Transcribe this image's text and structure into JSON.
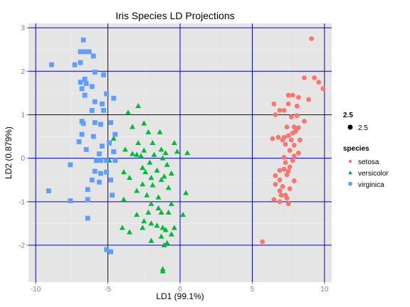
{
  "chart_data": {
    "type": "scatter",
    "title": "Iris Species LD Projections",
    "xlabel": "LD1 (99.1%)",
    "ylabel": "LD2 (0.879%)",
    "xlim": [
      -10.5,
      10.5
    ],
    "ylim": [
      -2.85,
      3.1
    ],
    "x_ticks": [
      -10,
      -5,
      0,
      5,
      10
    ],
    "x_tick_labels": [
      "-10",
      "-5",
      "0",
      "5",
      "10"
    ],
    "y_ticks": [
      -2,
      -1,
      0,
      1,
      2,
      3
    ],
    "y_tick_labels": [
      "-2",
      "-1",
      "0",
      "1",
      "2",
      "3"
    ],
    "panel_background": "#e5e5e5",
    "grid_color": "#0000cc",
    "grid": true,
    "legend": {
      "placement": "right",
      "size_title": "2.5",
      "size_label": "2.5",
      "species_title": "species",
      "entries": [
        "setosa",
        "versicolor",
        "virginica"
      ]
    },
    "series": [
      {
        "name": "setosa",
        "color": "#f8766d",
        "marker": "circle",
        "points": [
          [
            9.1,
            2.75
          ],
          [
            8.6,
            1.85
          ],
          [
            9.3,
            1.85
          ],
          [
            9.6,
            1.75
          ],
          [
            9.9,
            1.6
          ],
          [
            8.9,
            1.35
          ],
          [
            7.5,
            1.45
          ],
          [
            7.8,
            1.45
          ],
          [
            8.2,
            1.4
          ],
          [
            6.5,
            1.25
          ],
          [
            7.5,
            1.25
          ],
          [
            8.1,
            1.2
          ],
          [
            6.9,
            1.1
          ],
          [
            7.2,
            1.1
          ],
          [
            6.6,
            1.0
          ],
          [
            8.1,
            0.98
          ],
          [
            7.7,
            0.95
          ],
          [
            8.6,
            0.85
          ],
          [
            7.4,
            0.72
          ],
          [
            7.9,
            0.72
          ],
          [
            8.2,
            0.7
          ],
          [
            7.8,
            0.58
          ],
          [
            8.0,
            0.62
          ],
          [
            7.5,
            0.52
          ],
          [
            6.8,
            0.48
          ],
          [
            7.2,
            0.48
          ],
          [
            6.4,
            0.45
          ],
          [
            7.1,
            0.42
          ],
          [
            7.7,
            0.42
          ],
          [
            8.3,
            0.42
          ],
          [
            7.3,
            0.32
          ],
          [
            7.9,
            0.3
          ],
          [
            7.6,
            0.18
          ],
          [
            8.2,
            0.12
          ],
          [
            7.9,
            0.05
          ],
          [
            7.2,
            0.02
          ],
          [
            7.8,
            -0.05
          ],
          [
            7.3,
            -0.1
          ],
          [
            7.6,
            -0.2
          ],
          [
            7.2,
            -0.25
          ],
          [
            7.5,
            -0.3
          ],
          [
            6.9,
            -0.28
          ],
          [
            7.4,
            -0.38
          ],
          [
            6.6,
            -0.4
          ],
          [
            6.9,
            -0.5
          ],
          [
            7.9,
            -0.52
          ],
          [
            6.6,
            -0.6
          ],
          [
            7.1,
            -0.65
          ],
          [
            7.6,
            -0.7
          ],
          [
            6.9,
            -0.75
          ],
          [
            7.0,
            -0.85
          ],
          [
            7.3,
            -0.85
          ],
          [
            7.4,
            -0.92
          ],
          [
            6.5,
            -0.95
          ],
          [
            6.9,
            -1.0
          ],
          [
            7.5,
            -1.05
          ],
          [
            5.7,
            -1.92
          ]
        ]
      },
      {
        "name": "versicolor",
        "color": "#00ba38",
        "marker": "triangle",
        "points": [
          [
            -2.9,
            1.2
          ],
          [
            -3.6,
            1.05
          ],
          [
            -2.5,
            0.8
          ],
          [
            -3.3,
            0.72
          ],
          [
            -2.2,
            0.6
          ],
          [
            -1.4,
            0.6
          ],
          [
            -4.6,
            0.45
          ],
          [
            -2.9,
            0.35
          ],
          [
            -1.9,
            0.35
          ],
          [
            -0.4,
            0.35
          ],
          [
            -3.8,
            0.2
          ],
          [
            -2.5,
            0.18
          ],
          [
            -1.3,
            0.2
          ],
          [
            -0.2,
            0.15
          ],
          [
            -3.3,
            0.1
          ],
          [
            -3.0,
            0.08
          ],
          [
            -1.8,
            0.08
          ],
          [
            -1.0,
            0.12
          ],
          [
            0.5,
            0.12
          ],
          [
            -2.7,
            0.05
          ],
          [
            -1.2,
            0.0
          ],
          [
            -4.9,
            -0.05
          ],
          [
            -2.1,
            -0.1
          ],
          [
            -0.9,
            -0.15
          ],
          [
            -2.6,
            -0.22
          ],
          [
            -1.6,
            -0.28
          ],
          [
            -3.9,
            -0.32
          ],
          [
            -2.4,
            -0.32
          ],
          [
            -0.6,
            -0.35
          ],
          [
            -1.1,
            -0.42
          ],
          [
            -3.5,
            -0.45
          ],
          [
            -2.0,
            -0.45
          ],
          [
            -1.3,
            -0.5
          ],
          [
            -2.6,
            -0.6
          ],
          [
            -1.9,
            -0.62
          ],
          [
            -0.8,
            -0.68
          ],
          [
            -3.0,
            -0.75
          ],
          [
            -2.3,
            -0.85
          ],
          [
            -1.5,
            -0.9
          ],
          [
            -3.9,
            -0.95
          ],
          [
            0.4,
            -0.8
          ],
          [
            -2.0,
            -1.05
          ],
          [
            -0.6,
            -1.05
          ],
          [
            -1.5,
            -1.15
          ],
          [
            -2.2,
            -1.25
          ],
          [
            -0.8,
            -1.25
          ],
          [
            -3.0,
            -1.3
          ],
          [
            -1.3,
            -1.25
          ],
          [
            -2.5,
            -1.45
          ],
          [
            0.2,
            -1.3
          ],
          [
            -2.0,
            -1.5
          ],
          [
            -1.6,
            -1.55
          ],
          [
            -0.4,
            -1.6
          ],
          [
            -4.0,
            -1.6
          ],
          [
            -2.6,
            -1.6
          ],
          [
            -1.2,
            -1.6
          ],
          [
            -3.5,
            -1.7
          ],
          [
            -1.0,
            -1.65
          ],
          [
            -1.3,
            -1.8
          ],
          [
            -0.6,
            -1.75
          ],
          [
            -2.0,
            -1.9
          ],
          [
            -0.9,
            -1.95
          ],
          [
            -1.1,
            -2.0
          ],
          [
            -1.2,
            -2.55
          ],
          [
            -1.2,
            -2.6
          ]
        ]
      },
      {
        "name": "virginica",
        "color": "#619cff",
        "marker": "square",
        "points": [
          [
            -6.7,
            2.72
          ],
          [
            -6.6,
            2.45
          ],
          [
            -6.9,
            2.45
          ],
          [
            -6.3,
            2.45
          ],
          [
            -6.0,
            2.35
          ],
          [
            -8.9,
            2.15
          ],
          [
            -6.9,
            2.2
          ],
          [
            -7.3,
            2.15
          ],
          [
            -5.9,
            1.98
          ],
          [
            -5.3,
            1.92
          ],
          [
            -6.6,
            1.82
          ],
          [
            -6.5,
            1.72
          ],
          [
            -6.9,
            1.75
          ],
          [
            -6.1,
            1.65
          ],
          [
            -6.8,
            1.6
          ],
          [
            -5.1,
            1.48
          ],
          [
            -6.6,
            1.45
          ],
          [
            -4.6,
            1.38
          ],
          [
            -5.9,
            1.3
          ],
          [
            -5.4,
            1.25
          ],
          [
            -6.1,
            1.1
          ],
          [
            -5.3,
            1.1
          ],
          [
            -6.8,
            0.85
          ],
          [
            -6.7,
            0.8
          ],
          [
            -5.9,
            0.82
          ],
          [
            -4.8,
            0.82
          ],
          [
            -5.5,
            0.78
          ],
          [
            -6.8,
            0.55
          ],
          [
            -4.5,
            0.55
          ],
          [
            -6.0,
            0.5
          ],
          [
            -7.0,
            0.38
          ],
          [
            -5.4,
            0.28
          ],
          [
            -4.9,
            0.35
          ],
          [
            -6.5,
            0.2
          ],
          [
            -4.6,
            0.15
          ],
          [
            -5.6,
            0.1
          ],
          [
            -5.8,
            -0.05
          ],
          [
            -5.5,
            -0.05
          ],
          [
            -5.1,
            -0.05
          ],
          [
            -4.5,
            -0.05
          ],
          [
            -7.6,
            -0.15
          ],
          [
            -5.9,
            -0.3
          ],
          [
            -5.5,
            -0.35
          ],
          [
            -5.1,
            -0.32
          ],
          [
            -4.8,
            -0.5
          ],
          [
            -6.1,
            -0.5
          ],
          [
            -5.6,
            -0.55
          ],
          [
            -9.1,
            -0.75
          ],
          [
            -6.4,
            -0.72
          ],
          [
            -4.7,
            -0.85
          ],
          [
            -7.6,
            -0.98
          ],
          [
            -6.4,
            -0.95
          ],
          [
            -6.4,
            -1.38
          ],
          [
            -5.1,
            -2.1
          ],
          [
            -4.8,
            -2.15
          ]
        ]
      }
    ]
  }
}
